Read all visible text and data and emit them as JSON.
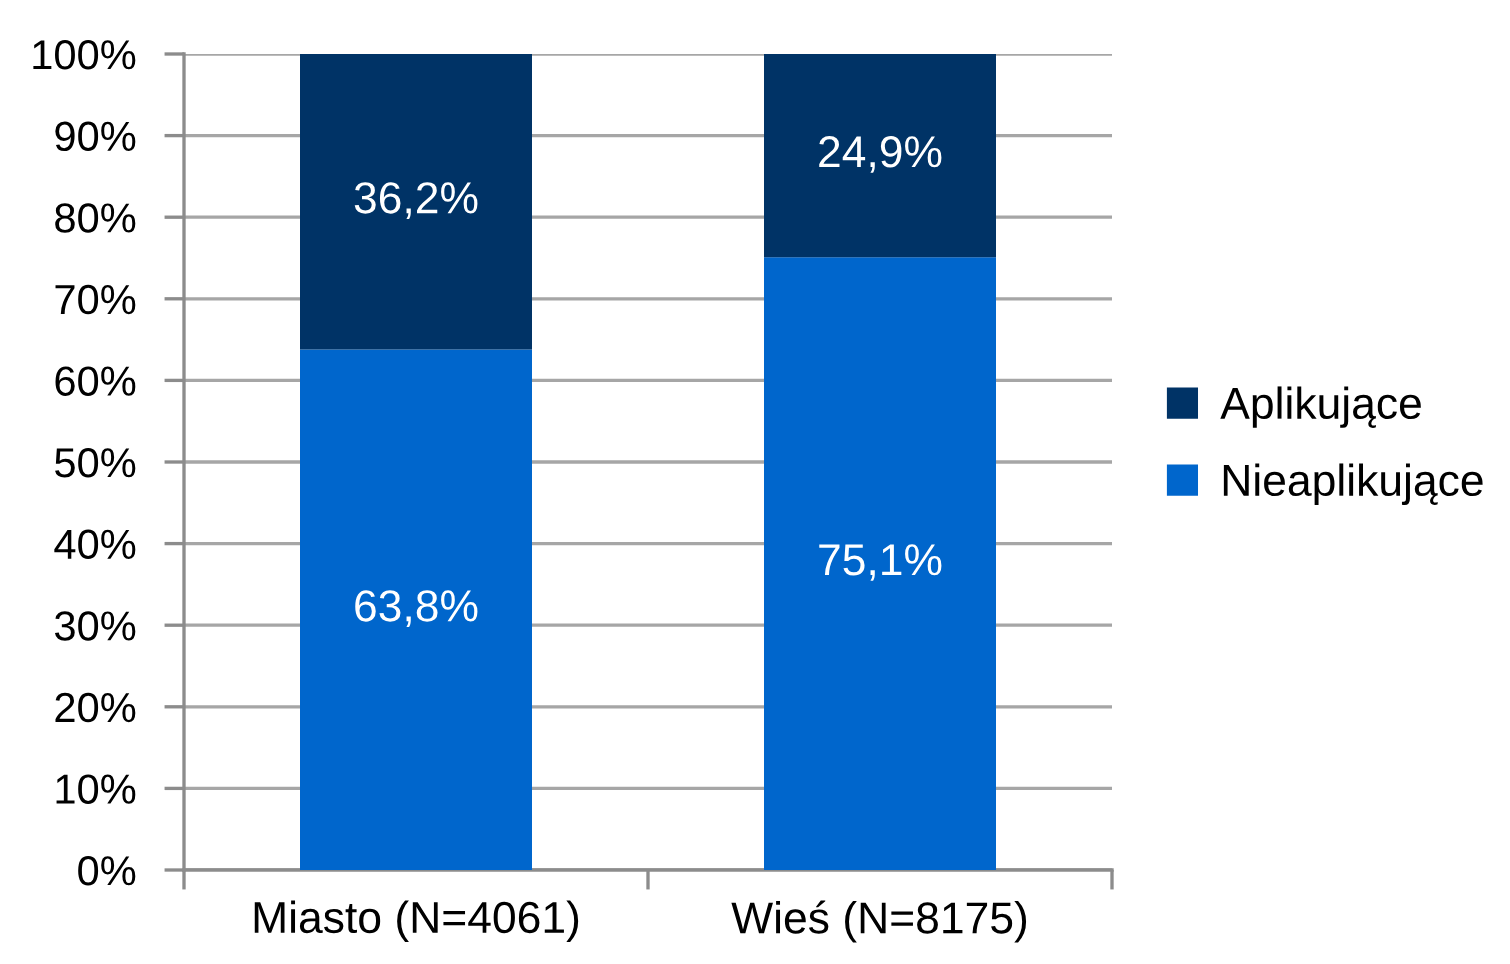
{
  "chart_data": {
    "type": "bar",
    "stacked": true,
    "categories": [
      "Miasto (N=4061)",
      "Wieś (N=8175)"
    ],
    "series": [
      {
        "name": "Nieaplikujące",
        "color": "#0066cc",
        "values": [
          63.8,
          75.1
        ],
        "value_labels": [
          "63,8%",
          "75,1%"
        ]
      },
      {
        "name": "Aplikujące",
        "color": "#003366",
        "values": [
          36.2,
          24.9
        ],
        "value_labels": [
          "36,2%",
          "24,9%"
        ]
      }
    ],
    "ylim": [
      0,
      100
    ],
    "yticks": [
      {
        "value": 0,
        "label": "0%"
      },
      {
        "value": 10,
        "label": "10%"
      },
      {
        "value": 20,
        "label": "20%"
      },
      {
        "value": 30,
        "label": "30%"
      },
      {
        "value": 40,
        "label": "40%"
      },
      {
        "value": 50,
        "label": "50%"
      },
      {
        "value": 60,
        "label": "60%"
      },
      {
        "value": 70,
        "label": "70%"
      },
      {
        "value": 80,
        "label": "80%"
      },
      {
        "value": 90,
        "label": "90%"
      },
      {
        "value": 100,
        "label": "100%"
      }
    ],
    "grid": "y",
    "legend": "right"
  }
}
